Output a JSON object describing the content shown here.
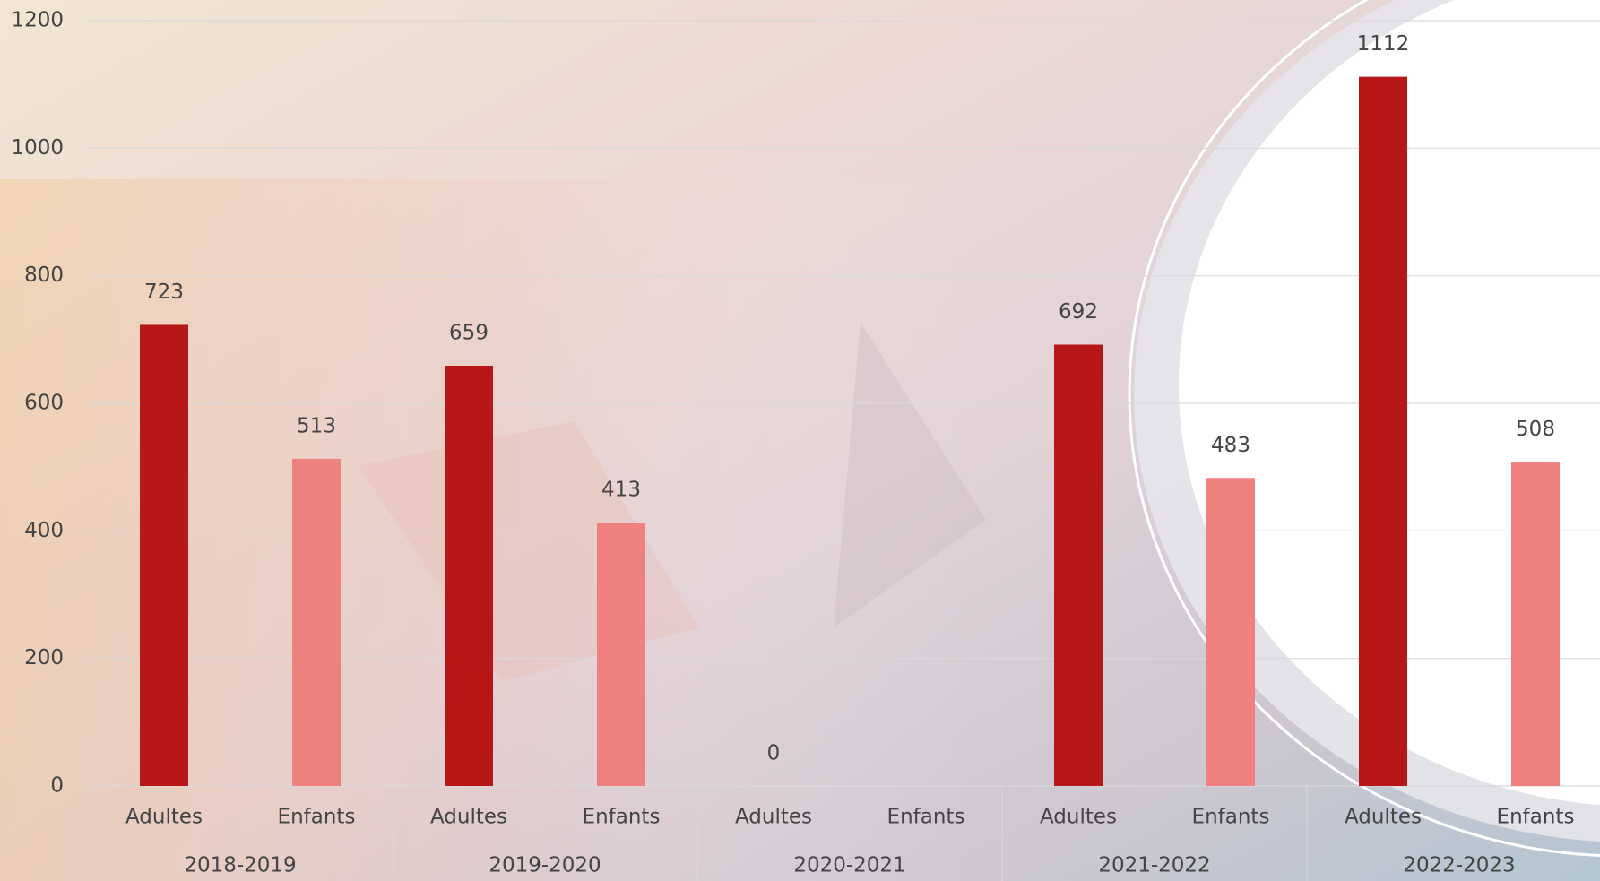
{
  "chart_data": {
    "type": "bar",
    "groups": [
      "2018-2019",
      "2019-2020",
      "2020-2021",
      "2021-2022",
      "2022-2023"
    ],
    "categories": [
      "Adultes",
      "Enfants",
      "Adultes",
      "Enfants",
      "Adultes",
      "Enfants",
      "Adultes",
      "Enfants",
      "Adultes",
      "Enfants"
    ],
    "values": [
      723,
      513,
      659,
      413,
      0,
      null,
      692,
      483,
      1112,
      508
    ],
    "colors": [
      "#b71717",
      "#f08080"
    ],
    "ylim": [
      0,
      1200
    ],
    "yticks": [
      0,
      200,
      400,
      600,
      800,
      1000,
      1200
    ],
    "grid": true
  }
}
